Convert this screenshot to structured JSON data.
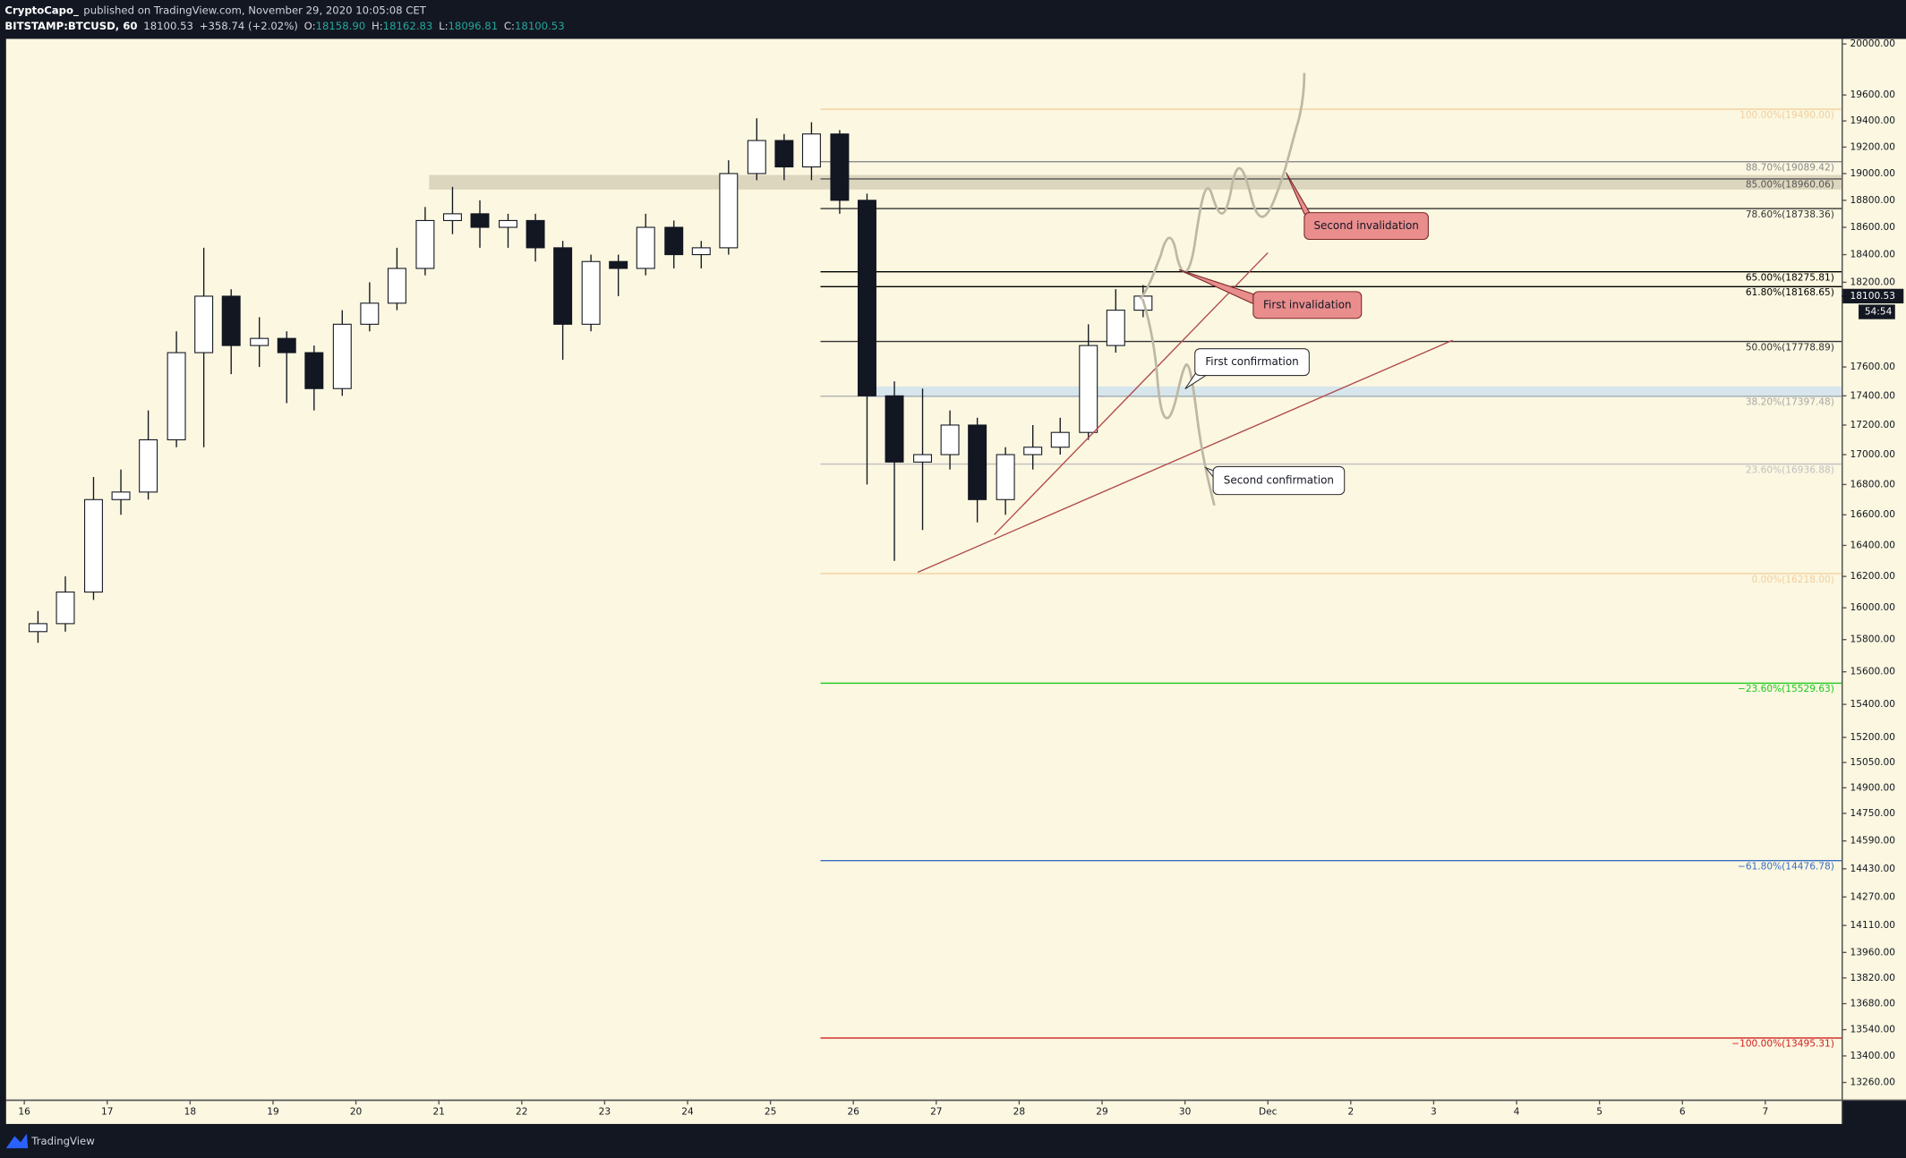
{
  "header": {
    "author": "CryptoCapo_",
    "published": "published on TradingView.com, November 29, 2020 10:05:08 CET",
    "symbol": "BITSTAMP:BTCUSD, 60",
    "last": "18100.53",
    "change": "+358.74 (+2.02%)",
    "quote": [
      {
        "label": "O:",
        "value": "18158.90"
      },
      {
        "label": "H:",
        "value": "18162.83"
      },
      {
        "label": "L:",
        "value": "18096.81"
      },
      {
        "label": "C:",
        "value": "18100.53"
      }
    ]
  },
  "footer": {
    "brand": "TradingView"
  },
  "annotations": [
    "Second invalidation",
    "First invalidation",
    "First confirmation",
    "Second confirmation"
  ],
  "chart_data": {
    "type": "candlestick",
    "log_scale": true,
    "up_color": "#ffffff",
    "down_color": "#131722",
    "x": [
      16,
      16.33,
      16.67,
      17,
      17.33,
      17.67,
      18,
      18.33,
      18.67,
      19,
      19.33,
      19.67,
      20,
      20.33,
      20.67,
      21,
      21.33,
      21.67,
      22,
      22.33,
      22.67,
      23,
      23.33,
      23.67,
      24,
      24.33,
      24.67,
      25,
      25.33,
      25.67,
      26,
      26.33,
      26.67,
      27,
      27.33,
      27.67,
      28,
      28.33,
      28.67,
      29,
      29.33
    ],
    "open": [
      15850,
      15900,
      16100,
      16700,
      16750,
      17100,
      17700,
      18100,
      17750,
      17800,
      17700,
      17450,
      17900,
      18050,
      18300,
      18650,
      18700,
      18600,
      18650,
      18450,
      17900,
      18350,
      18300,
      18600,
      18400,
      18450,
      19000,
      19250,
      19050,
      19300,
      18800,
      17400,
      16950,
      17000,
      17200,
      16700,
      17000,
      17050,
      17150,
      17750,
      18000
    ],
    "high": [
      15980,
      16200,
      16850,
      16900,
      17300,
      17850,
      18450,
      18150,
      17950,
      17850,
      17750,
      18000,
      18200,
      18450,
      18750,
      18900,
      18800,
      18700,
      18700,
      18500,
      18400,
      18400,
      18700,
      18650,
      18500,
      19100,
      19420,
      19300,
      19390,
      19330,
      18850,
      17500,
      17450,
      17300,
      17250,
      17050,
      17200,
      17250,
      17900,
      18150,
      18180
    ],
    "low": [
      15780,
      15850,
      16050,
      16600,
      16700,
      17050,
      17050,
      17550,
      17600,
      17350,
      17300,
      17400,
      17850,
      18000,
      18250,
      18550,
      18450,
      18450,
      18350,
      17650,
      17850,
      18100,
      18250,
      18300,
      18300,
      18400,
      18950,
      18950,
      18950,
      18700,
      16800,
      16300,
      16500,
      16900,
      16550,
      16600,
      16900,
      17000,
      17100,
      17700,
      17950
    ],
    "close": [
      15900,
      16100,
      16700,
      16750,
      17100,
      17700,
      18100,
      17750,
      17800,
      17700,
      17450,
      17900,
      18050,
      18300,
      18650,
      18700,
      18600,
      18650,
      18450,
      17900,
      18350,
      18300,
      18600,
      18400,
      18450,
      19000,
      19250,
      19050,
      19300,
      18800,
      17400,
      16950,
      17000,
      17200,
      16700,
      17000,
      17050,
      17150,
      17750,
      18000,
      18100.53
    ],
    "last_price": {
      "value": 18100.53,
      "label": "18100.53"
    },
    "countdown": "54:54",
    "xlim": [
      15.78,
      37.92
    ],
    "xticks": [
      16,
      17,
      18,
      19,
      20,
      21,
      22,
      23,
      24,
      25,
      26,
      27,
      28,
      29,
      30,
      {
        "value": 31,
        "label": "Dec"
      },
      {
        "value": 32,
        "label": "2"
      },
      {
        "value": 33,
        "label": "3"
      },
      {
        "value": 34,
        "label": "4"
      },
      {
        "value": 35,
        "label": "5"
      },
      {
        "value": 36,
        "label": "6"
      },
      {
        "value": 37,
        "label": "7"
      }
    ],
    "ylim": [
      13170,
      20040
    ],
    "yticks": [
      {
        "value": 20000,
        "label": "20000.00"
      },
      {
        "value": 19600,
        "label": "19600.00"
      },
      {
        "value": 19400,
        "label": "19400.00"
      },
      {
        "value": 19200,
        "label": "19200.00"
      },
      {
        "value": 19000,
        "label": "19000.00"
      },
      {
        "value": 18800,
        "label": "18800.00"
      },
      {
        "value": 18600,
        "label": "18600.00"
      },
      {
        "value": 18400,
        "label": "18400.00"
      },
      {
        "value": 18200,
        "label": "18200.00"
      },
      {
        "value": 17600,
        "label": "17600.00"
      },
      {
        "value": 17400,
        "label": "17400.00"
      },
      {
        "value": 17200,
        "label": "17200.00"
      },
      {
        "value": 17000,
        "label": "17000.00"
      },
      {
        "value": 16800,
        "label": "16800.00"
      },
      {
        "value": 16600,
        "label": "16600.00"
      },
      {
        "value": 16400,
        "label": "16400.00"
      },
      {
        "value": 16200,
        "label": "16200.00"
      },
      {
        "value": 16000,
        "label": "16000.00"
      },
      {
        "value": 15800,
        "label": "15800.00"
      },
      {
        "value": 15600,
        "label": "15600.00"
      },
      {
        "value": 15400,
        "label": "15400.00"
      },
      {
        "value": 15200,
        "label": "15200.00"
      },
      {
        "value": 15050,
        "label": "15050.00"
      },
      {
        "value": 14900,
        "label": "14900.00"
      },
      {
        "value": 14750,
        "label": "14750.00"
      },
      {
        "value": 14590,
        "label": "14590.00"
      },
      {
        "value": 14430,
        "label": "14430.00"
      },
      {
        "value": 14270,
        "label": "14270.00"
      },
      {
        "value": 14110,
        "label": "14110.00"
      },
      {
        "value": 13960,
        "label": "13960.00"
      },
      {
        "value": 13820,
        "label": "13820.00"
      },
      {
        "value": 13680,
        "label": "13680.00"
      },
      {
        "value": 13540,
        "label": "13540.00"
      },
      {
        "value": 13400,
        "label": "13400.00"
      },
      {
        "value": 13260,
        "label": "13260.00"
      }
    ],
    "fib_levels": [
      {
        "value": 19490,
        "label": "100.00%(19490.00)",
        "color": "#f2cfa0"
      },
      {
        "value": 19089.42,
        "label": "88.70%(19089.42)",
        "color": "#8a8a8a"
      },
      {
        "value": 18960.06,
        "label": "85.00%(18960.06)",
        "color": "#555555"
      },
      {
        "value": 18738.36,
        "label": "78.60%(18738.36)",
        "color": "#333333"
      },
      {
        "value": 18275.81,
        "label": "65.00%(18275.81)",
        "color": "#000000"
      },
      {
        "value": 18168.65,
        "label": "61.80%(18168.65)",
        "color": "#000000"
      },
      {
        "value": 17778.89,
        "label": "50.00%(17778.89)",
        "color": "#333333"
      },
      {
        "value": 17397.48,
        "label": "38.20%(17397.48)",
        "color": "#a8a8a8"
      },
      {
        "value": 16936.88,
        "label": "23.60%(16936.88)",
        "color": "#c0c0c0"
      },
      {
        "value": 16218,
        "label": "0.00%(16218.00)",
        "color": "#f2cfa0"
      },
      {
        "value": 15529.63,
        "label": "−23.60%(15529.63)",
        "color": "#1ec81e"
      },
      {
        "value": 14476.78,
        "label": "−61.80%(14476.78)",
        "color": "#3a6fc4"
      },
      {
        "value": 13495.31,
        "label": "−100.00%(13495.31)",
        "color": "#d02020"
      }
    ]
  }
}
